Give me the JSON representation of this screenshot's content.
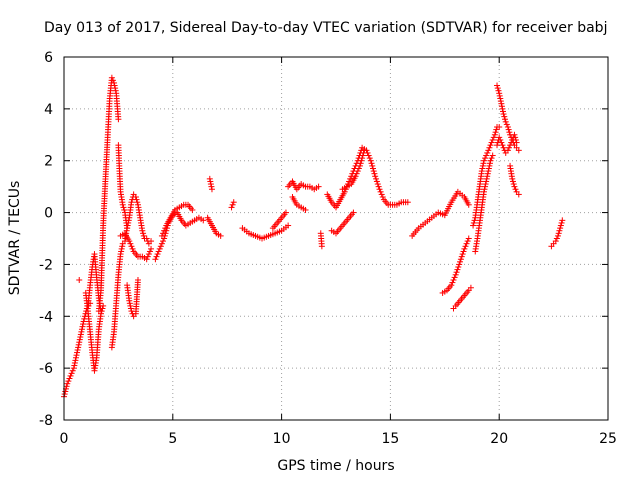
{
  "chart_data": {
    "type": "scatter",
    "title": "Day 013 of 2017, Sidereal Day-to-day VTEC variation (SDTVAR) for receiver babj",
    "xlabel": "GPS time / hours",
    "ylabel": "SDTVAR / TECUs",
    "xlim": [
      0,
      25
    ],
    "ylim": [
      -8,
      6
    ],
    "xticks": [
      "0",
      "5",
      "10",
      "15",
      "20",
      "25"
    ],
    "yticks": [
      "-8",
      "-6",
      "-4",
      "-2",
      "0",
      "2",
      "4",
      "6"
    ],
    "grid": true,
    "marker": "+",
    "color": "#ff0000",
    "series": [
      {
        "name": "SDTVAR",
        "segments": [
          {
            "x": [
              0.0,
              0.15,
              0.3,
              0.45,
              0.6,
              0.75,
              0.9,
              1.05,
              1.2
            ],
            "y": [
              -7.1,
              -6.6,
              -6.3,
              -6.0,
              -5.4,
              -4.8,
              -4.2,
              -3.7,
              -3.5
            ]
          },
          {
            "x": [
              0.7
            ],
            "y": [
              -2.6
            ]
          },
          {
            "x": [
              1.0,
              1.1,
              1.2,
              1.3,
              1.4,
              1.5,
              1.6,
              1.7,
              1.8
            ],
            "y": [
              -3.1,
              -3.8,
              -4.6,
              -5.4,
              -6.1,
              -5.6,
              -4.5,
              -3.9,
              -3.6
            ]
          },
          {
            "x": [
              1.1,
              1.2,
              1.3,
              1.4,
              1.5,
              1.6,
              1.7
            ],
            "y": [
              -3.6,
              -2.8,
              -2.1,
              -1.6,
              -2.5,
              -3.3,
              -3.8
            ]
          },
          {
            "x": [
              1.6,
              1.7,
              1.8,
              1.9,
              2.0,
              2.05,
              2.1,
              2.2,
              2.3,
              2.4,
              2.5
            ],
            "y": [
              -3.8,
              -3.0,
              -0.5,
              1.2,
              2.8,
              3.6,
              4.4,
              5.2,
              5.0,
              4.6,
              3.6
            ]
          },
          {
            "x": [
              2.5,
              2.55,
              2.6,
              2.7,
              2.8,
              2.9
            ],
            "y": [
              2.6,
              1.6,
              0.8,
              0.3,
              0.0,
              -0.6
            ]
          },
          {
            "x": [
              2.2,
              2.3,
              2.4,
              2.5,
              2.6,
              2.7,
              2.8,
              2.9,
              3.0,
              3.1,
              3.2,
              3.3
            ],
            "y": [
              -5.2,
              -4.6,
              -3.5,
              -2.4,
              -1.6,
              -1.2,
              -1.1,
              -0.6,
              -0.2,
              0.4,
              0.7,
              0.6
            ]
          },
          {
            "x": [
              2.6,
              2.8,
              3.0,
              3.2,
              3.4,
              3.6,
              3.8,
              4.0
            ],
            "y": [
              -0.9,
              -0.8,
              -1.1,
              -1.5,
              -1.7,
              -1.7,
              -1.8,
              -1.4
            ]
          },
          {
            "x": [
              2.9,
              3.0,
              3.1,
              3.2,
              3.3,
              3.4
            ],
            "y": [
              -2.8,
              -3.4,
              -3.8,
              -4.0,
              -3.9,
              -2.6
            ]
          },
          {
            "x": [
              3.3,
              3.4,
              3.5,
              3.6,
              3.7,
              3.8,
              3.9,
              4.0
            ],
            "y": [
              0.6,
              0.3,
              -0.2,
              -0.7,
              -1.0,
              -1.0,
              -1.2,
              -1.1
            ]
          },
          {
            "x": [
              4.2,
              4.4,
              4.6,
              4.8,
              5.0,
              5.2,
              5.4,
              5.6,
              5.8,
              6.0,
              6.2,
              6.4
            ],
            "y": [
              -1.8,
              -1.4,
              -1.0,
              -0.4,
              -0.1,
              0.0,
              -0.3,
              -0.5,
              -0.4,
              -0.3,
              -0.2,
              -0.3
            ]
          },
          {
            "x": [
              4.5,
              4.7,
              4.9,
              5.1,
              5.3,
              5.5,
              5.7,
              5.9
            ],
            "y": [
              -0.9,
              -0.5,
              -0.2,
              0.1,
              0.2,
              0.3,
              0.3,
              0.1
            ]
          },
          {
            "x": [
              6.7,
              6.8
            ],
            "y": [
              1.3,
              0.9
            ]
          },
          {
            "x": [
              6.6,
              6.8,
              7.0,
              7.2
            ],
            "y": [
              -0.2,
              -0.5,
              -0.8,
              -0.9
            ]
          },
          {
            "x": [
              7.7,
              7.8
            ],
            "y": [
              0.2,
              0.4
            ]
          },
          {
            "x": [
              8.2,
              8.5,
              8.8,
              9.1,
              9.4,
              9.7,
              10.0,
              10.3
            ],
            "y": [
              -0.6,
              -0.8,
              -0.9,
              -1.0,
              -0.9,
              -0.8,
              -0.7,
              -0.5
            ]
          },
          {
            "x": [
              9.6,
              9.8,
              10.0,
              10.2
            ],
            "y": [
              -0.6,
              -0.4,
              -0.2,
              0.0
            ]
          },
          {
            "x": [
              10.3,
              10.5,
              10.7,
              10.9,
              11.1,
              11.3,
              11.5,
              11.7
            ],
            "y": [
              1.0,
              1.2,
              0.9,
              1.1,
              1.0,
              1.0,
              0.9,
              1.0
            ]
          },
          {
            "x": [
              10.5,
              10.7,
              10.9,
              11.1
            ],
            "y": [
              0.6,
              0.3,
              0.2,
              0.1
            ]
          },
          {
            "x": [
              11.8,
              11.85
            ],
            "y": [
              -0.8,
              -1.3
            ]
          },
          {
            "x": [
              12.1,
              12.3,
              12.5,
              12.7,
              12.9,
              13.1,
              13.3,
              13.5,
              13.7,
              13.9,
              14.1,
              14.3,
              14.5,
              14.7,
              14.9,
              15.1,
              15.3,
              15.5,
              15.8
            ],
            "y": [
              0.7,
              0.4,
              0.2,
              0.5,
              0.8,
              1.2,
              1.6,
              2.0,
              2.5,
              2.4,
              2.0,
              1.4,
              0.9,
              0.5,
              0.3,
              0.3,
              0.3,
              0.4,
              0.4
            ]
          },
          {
            "x": [
              12.3,
              12.5,
              12.7,
              12.9,
              13.1,
              13.3
            ],
            "y": [
              -0.7,
              -0.8,
              -0.6,
              -0.4,
              -0.2,
              0.0
            ]
          },
          {
            "x": [
              12.8,
              13.0,
              13.2,
              13.4,
              13.6,
              13.8
            ],
            "y": [
              0.9,
              1.0,
              1.1,
              1.4,
              1.8,
              2.4
            ]
          },
          {
            "x": [
              16.0,
              16.3,
              16.6,
              16.9,
              17.2,
              17.5,
              17.8,
              18.1,
              18.4,
              18.6
            ],
            "y": [
              -0.9,
              -0.6,
              -0.4,
              -0.2,
              0.0,
              -0.1,
              0.4,
              0.8,
              0.6,
              0.3
            ]
          },
          {
            "x": [
              17.4,
              17.6,
              17.8,
              18.0,
              18.2,
              18.4,
              18.6
            ],
            "y": [
              -3.1,
              -3.0,
              -2.8,
              -2.4,
              -1.9,
              -1.4,
              -1.0
            ]
          },
          {
            "x": [
              17.9,
              18.0,
              18.2,
              18.4,
              18.6,
              18.7
            ],
            "y": [
              -3.7,
              -3.6,
              -3.4,
              -3.2,
              -3.0,
              -2.9
            ]
          },
          {
            "x": [
              18.8,
              18.9,
              19.0,
              19.1,
              19.2,
              19.3,
              19.4,
              19.5,
              19.6,
              19.7,
              19.8,
              19.9,
              20.0
            ],
            "y": [
              -0.5,
              -0.2,
              0.4,
              1.0,
              1.6,
              2.0,
              2.2,
              2.4,
              2.6,
              2.8,
              3.0,
              3.3,
              3.3
            ]
          },
          {
            "x": [
              18.9,
              19.0,
              19.1,
              19.2,
              19.3,
              19.4,
              19.5,
              19.6,
              19.7
            ],
            "y": [
              -1.5,
              -1.0,
              -0.4,
              0.2,
              0.8,
              1.2,
              1.6,
              2.0,
              2.2
            ]
          },
          {
            "x": [
              19.9,
              20.0,
              20.1,
              20.2,
              20.3,
              20.4,
              20.5,
              20.6,
              20.7,
              20.8,
              20.9
            ],
            "y": [
              4.9,
              4.6,
              4.2,
              3.8,
              3.5,
              3.3,
              3.0,
              2.8,
              2.6,
              2.5,
              2.4
            ]
          },
          {
            "x": [
              19.9,
              20.0,
              20.1,
              20.2,
              20.3,
              20.4,
              20.5,
              20.6,
              20.7,
              20.8
            ],
            "y": [
              2.6,
              2.9,
              2.7,
              2.5,
              2.3,
              2.4,
              2.6,
              2.8,
              3.0,
              2.7
            ]
          },
          {
            "x": [
              20.5,
              20.6,
              20.7,
              20.8,
              20.9
            ],
            "y": [
              1.8,
              1.3,
              1.0,
              0.8,
              0.7
            ]
          },
          {
            "x": [
              22.4,
              22.5,
              22.6,
              22.7,
              22.8,
              22.9
            ],
            "y": [
              -1.3,
              -1.2,
              -1.1,
              -0.9,
              -0.6,
              -0.3
            ]
          }
        ]
      }
    ]
  }
}
